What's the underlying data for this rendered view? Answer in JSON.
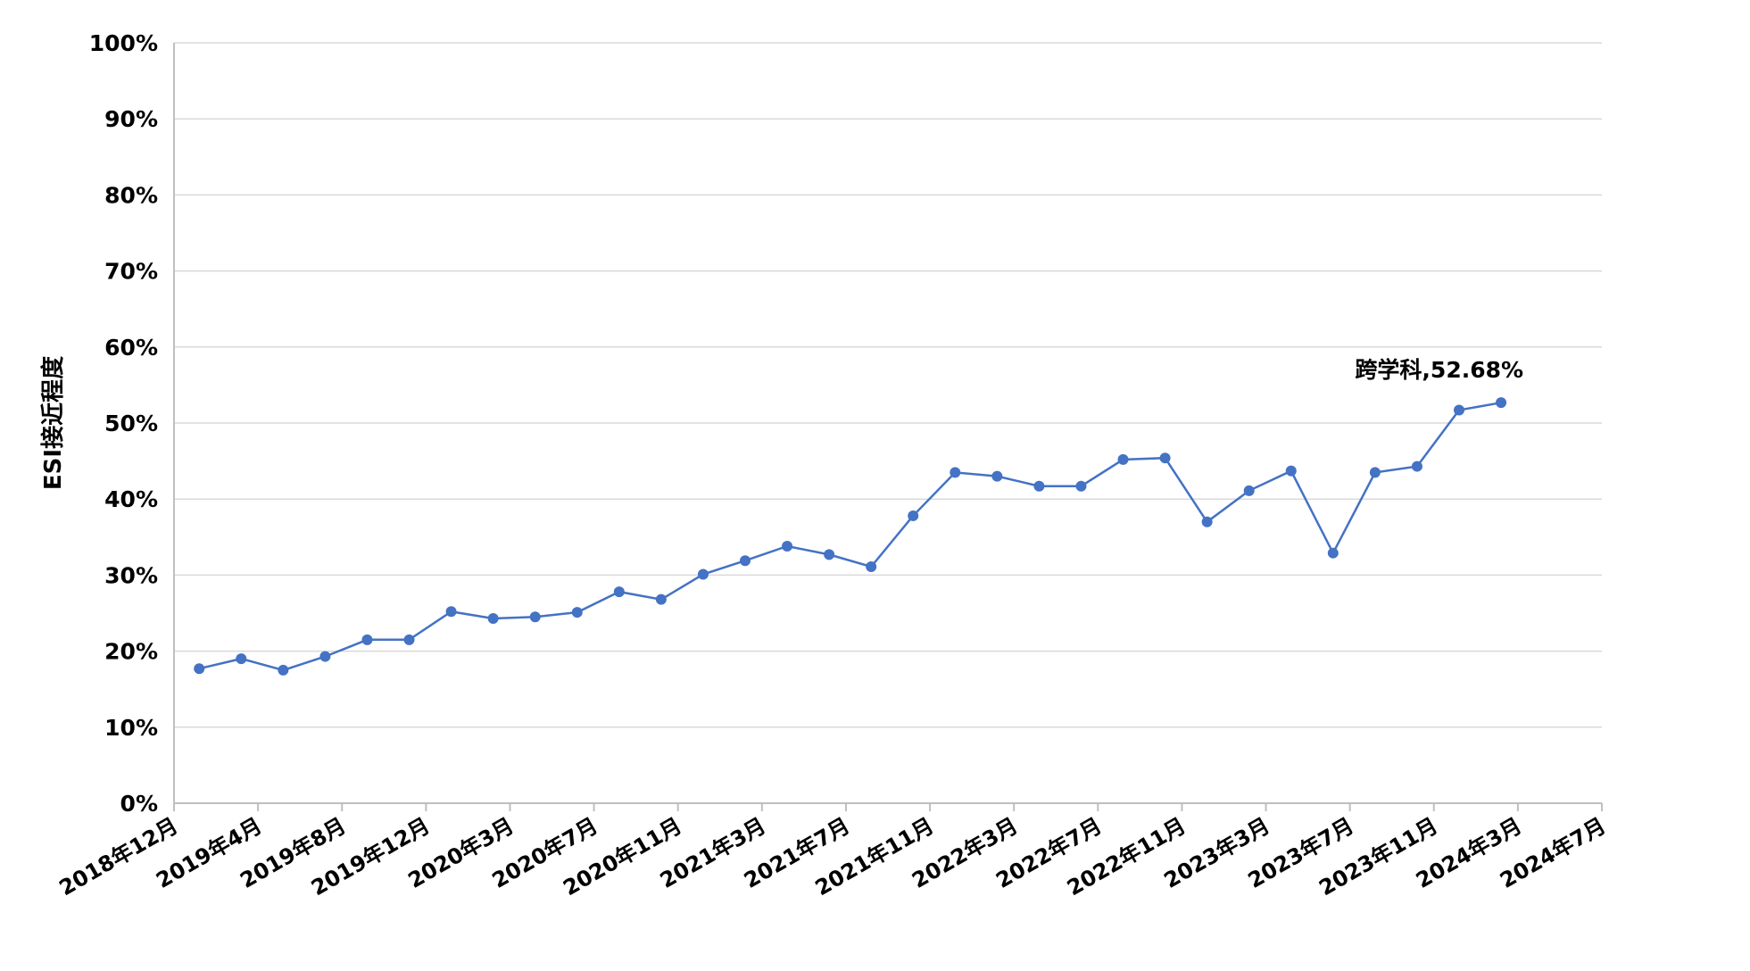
{
  "chart_data": {
    "type": "line",
    "title": "",
    "xlabel": "",
    "ylabel": "ESI接近程度",
    "ylim": [
      0,
      100
    ],
    "y_ticks": [
      "0%",
      "10%",
      "20%",
      "30%",
      "40%",
      "50%",
      "60%",
      "70%",
      "80%",
      "90%",
      "100%"
    ],
    "x_tick_labels": [
      "2018年12月",
      "2019年4月",
      "2019年8月",
      "2019年12月",
      "2020年3月",
      "2020年7月",
      "2020年11月",
      "2021年3月",
      "2021年7月",
      "2021年11月",
      "2022年3月",
      "2022年7月",
      "2022年11月",
      "2023年3月",
      "2023年7月",
      "2023年11月",
      "2024年3月",
      "2024年7月"
    ],
    "grid": true,
    "legend": "none",
    "colors": {
      "line": "#4472C4",
      "grid": "#D9D9D9",
      "axis": "#BFBFBF"
    },
    "series": [
      {
        "values": [
          17.7,
          19.0,
          17.5,
          19.3,
          21.5,
          21.5,
          25.2,
          24.3,
          24.5,
          25.1,
          27.8,
          26.8,
          30.1,
          31.9,
          33.8,
          32.7,
          31.1,
          37.8,
          43.5,
          43.0,
          41.7,
          41.7,
          45.2,
          45.4,
          37.0,
          41.1,
          43.7,
          32.9,
          43.5,
          44.3,
          51.7,
          52.68
        ]
      }
    ],
    "annotation": {
      "text": "跨学科,52.68%",
      "point_index": 31
    }
  }
}
